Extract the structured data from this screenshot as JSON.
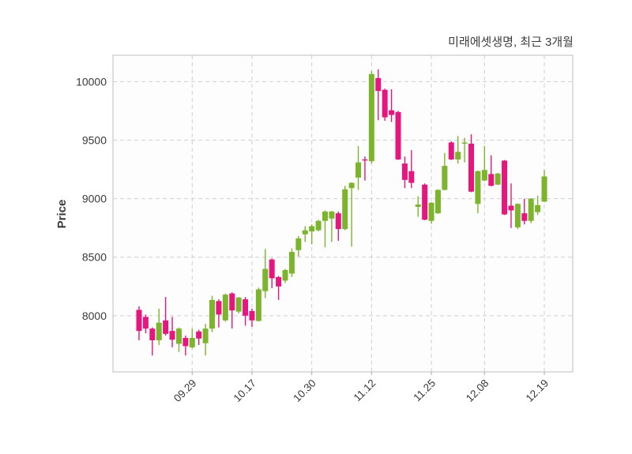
{
  "chart_data": {
    "type": "candlestick",
    "title": "미래에셋생명, 최근 3개월",
    "ylabel": "Price",
    "xlabel": "",
    "legend": "none",
    "grid": "dashed-both-axes",
    "y_ticks": [
      10000,
      9500,
      9000,
      8500,
      8000
    ],
    "ylim": [
      7520,
      10225
    ],
    "x_tick_labels": [
      "09.29",
      "10.17",
      "10.30",
      "11.12",
      "11.25",
      "12.08",
      "12.19"
    ],
    "x_tick_indices": [
      8,
      17,
      26,
      35,
      44,
      52,
      61
    ],
    "ohlc_format": [
      "open",
      "high",
      "low",
      "close"
    ],
    "candles": [
      [
        8050,
        8080,
        7790,
        7870
      ],
      [
        7990,
        8010,
        7850,
        7890
      ],
      [
        7890,
        7900,
        7660,
        7790
      ],
      [
        7790,
        8060,
        7750,
        7940
      ],
      [
        7960,
        8160,
        7830,
        7845
      ],
      [
        7870,
        7990,
        7730,
        7795
      ],
      [
        7760,
        7900,
        7690,
        7890
      ],
      [
        7810,
        7830,
        7660,
        7740
      ],
      [
        7730,
        7890,
        7720,
        7810
      ],
      [
        7865,
        7880,
        7750,
        7805
      ],
      [
        7765,
        7930,
        7660,
        7890
      ],
      [
        7890,
        8170,
        7860,
        8135
      ],
      [
        8125,
        8140,
        7900,
        8010
      ],
      [
        7960,
        8190,
        7950,
        8180
      ],
      [
        8190,
        8200,
        7890,
        8045
      ],
      [
        8035,
        8160,
        8020,
        8155
      ],
      [
        8140,
        8160,
        7915,
        8000
      ],
      [
        8040,
        8060,
        7905,
        7960
      ],
      [
        7955,
        8240,
        7950,
        8225
      ],
      [
        8210,
        8570,
        8150,
        8400
      ],
      [
        8480,
        8490,
        8235,
        8320
      ],
      [
        8330,
        8340,
        8135,
        8250
      ],
      [
        8300,
        8400,
        8280,
        8390
      ],
      [
        8360,
        8575,
        8330,
        8545
      ],
      [
        8560,
        8680,
        8505,
        8660
      ],
      [
        8695,
        8765,
        8630,
        8730
      ],
      [
        8720,
        8780,
        8610,
        8765
      ],
      [
        8730,
        8820,
        8720,
        8810
      ],
      [
        8810,
        8900,
        8585,
        8890
      ],
      [
        8830,
        8895,
        8630,
        8890
      ],
      [
        8875,
        8890,
        8640,
        8740
      ],
      [
        8740,
        9110,
        8730,
        9080
      ],
      [
        9090,
        9140,
        8590,
        9135
      ],
      [
        9180,
        9450,
        9075,
        9310
      ],
      [
        9335,
        9360,
        9155,
        9330
      ],
      [
        9320,
        10090,
        9300,
        10065
      ],
      [
        10030,
        10105,
        9670,
        9920
      ],
      [
        9930,
        9940,
        9665,
        9695
      ],
      [
        9755,
        9935,
        9655,
        9715
      ],
      [
        9740,
        9750,
        9330,
        9335
      ],
      [
        9300,
        9360,
        9090,
        9160
      ],
      [
        9235,
        9415,
        9090,
        9135
      ],
      [
        8930,
        9020,
        8845,
        8950
      ],
      [
        9120,
        9130,
        8815,
        8820
      ],
      [
        8810,
        8970,
        8785,
        8965
      ],
      [
        8875,
        9080,
        8870,
        9075
      ],
      [
        9075,
        9390,
        9070,
        9280
      ],
      [
        9480,
        9490,
        9330,
        9335
      ],
      [
        9335,
        9535,
        9300,
        9400
      ],
      [
        9470,
        9520,
        9310,
        9480
      ],
      [
        9470,
        9550,
        9055,
        9060
      ],
      [
        8955,
        9240,
        8875,
        9235
      ],
      [
        9155,
        9450,
        9150,
        9245
      ],
      [
        9210,
        9370,
        9105,
        9110
      ],
      [
        9120,
        9220,
        9115,
        9215
      ],
      [
        9325,
        9330,
        8860,
        8865
      ],
      [
        8940,
        9130,
        8750,
        8900
      ],
      [
        8755,
        8960,
        8740,
        8955
      ],
      [
        8875,
        9000,
        8780,
        8810
      ],
      [
        8810,
        9005,
        8790,
        9000
      ],
      [
        8885,
        9025,
        8860,
        8945
      ],
      [
        8975,
        9245,
        8970,
        9190
      ]
    ],
    "colors": {
      "up": "#7cb52d",
      "down": "#e5177e",
      "grid": "#cfcfcf",
      "spine": "#c9c9c9",
      "tick_mark": "#ababab",
      "title_text": "#3c3c3c",
      "axis_text": "#3a3a3a",
      "background": "#ffffff",
      "plot_background": "#fdfdfd"
    }
  }
}
